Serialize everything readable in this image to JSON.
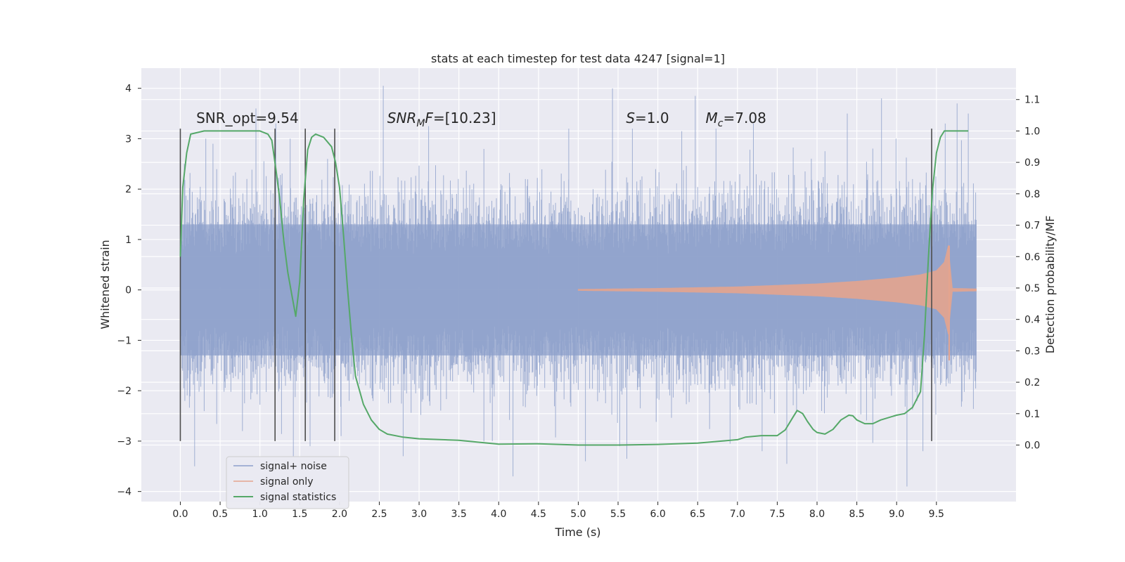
{
  "chart_data": {
    "type": "line",
    "title": "stats at each timestep for test data 4247 [signal=1]",
    "xlabel": "Time (s)",
    "ylabel": "Whitened strain",
    "y2label": "Detection probability/MF",
    "xlim": [
      -0.49,
      10.5
    ],
    "ylim": [
      -4.2,
      4.4
    ],
    "y2lim": [
      -0.18,
      1.2
    ],
    "x_ticks": [
      "0.0",
      "0.5",
      "1.0",
      "1.5",
      "2.0",
      "2.5",
      "3.0",
      "3.5",
      "4.0",
      "4.5",
      "5.0",
      "5.5",
      "6.0",
      "6.5",
      "7.0",
      "7.5",
      "8.0",
      "8.5",
      "9.0",
      "9.5"
    ],
    "y_ticks": [
      "−4",
      "−3",
      "−2",
      "−1",
      "0",
      "1",
      "2",
      "3",
      "4"
    ],
    "y2_ticks": [
      "0.0",
      "0.1",
      "0.2",
      "0.3",
      "0.4",
      "0.5",
      "0.6",
      "0.7",
      "0.8",
      "0.9",
      "1.0",
      "1.1"
    ],
    "grid": true,
    "legend_position": "lower-left",
    "annotations": [
      {
        "parts": [
          {
            "t": "SNR_opt=9.54",
            "style": "normal"
          }
        ],
        "x": 0.2,
        "y": 3.2
      },
      {
        "parts": [
          {
            "t": "SNR",
            "style": "italic"
          },
          {
            "t": "M",
            "style": "italic-sub"
          },
          {
            "t": "F",
            "style": "italic"
          },
          {
            "t": "=[10.23]",
            "style": "normal"
          }
        ],
        "x": 2.6,
        "y": 3.2
      },
      {
        "parts": [
          {
            "t": "S",
            "style": "italic"
          },
          {
            "t": "=1.0",
            "style": "normal"
          }
        ],
        "x": 5.6,
        "y": 3.2
      },
      {
        "parts": [
          {
            "t": "M",
            "style": "italic"
          },
          {
            "t": "c",
            "style": "italic-sub"
          },
          {
            "t": "=7.08",
            "style": "normal"
          }
        ],
        "x": 6.6,
        "y": 3.2
      }
    ],
    "vlines": [
      0.0,
      1.19,
      1.57,
      1.94,
      9.44
    ],
    "vline_range": [
      -3.0,
      3.2
    ],
    "series": [
      {
        "name": "signal+ noise",
        "color": "#8da0cb",
        "kind": "noise",
        "x_range": [
          0.0,
          10.0
        ],
        "bulk_amplitude": 1.3,
        "typical_peak": 2.5,
        "spikes": [
          [
            0.05,
            2.5
          ],
          [
            0.18,
            -3.5
          ],
          [
            0.32,
            3.0
          ],
          [
            0.41,
            2.9
          ],
          [
            0.78,
            -2.8
          ],
          [
            0.95,
            3.6
          ],
          [
            1.2,
            3.3
          ],
          [
            1.38,
            3.0
          ],
          [
            1.42,
            -3.3
          ],
          [
            1.63,
            -3.1
          ],
          [
            1.85,
            2.6
          ],
          [
            2.02,
            -2.9
          ],
          [
            2.55,
            4.05
          ],
          [
            2.8,
            -3.3
          ],
          [
            3.12,
            3.25
          ],
          [
            3.92,
            -3.0
          ],
          [
            4.18,
            -3.7
          ],
          [
            4.88,
            3.2
          ],
          [
            5.09,
            -3.4
          ],
          [
            5.43,
            4.0
          ],
          [
            5.52,
            -3.1
          ],
          [
            5.61,
            -3.35
          ],
          [
            5.68,
            3.2
          ],
          [
            6.3,
            3.15
          ],
          [
            6.47,
            3.85
          ],
          [
            6.73,
            3.2
          ],
          [
            7.2,
            3.3
          ],
          [
            7.31,
            -3.2
          ],
          [
            7.62,
            -3.45
          ],
          [
            8.38,
            3.5
          ],
          [
            8.81,
            3.8
          ],
          [
            9.13,
            -3.9
          ],
          [
            9.33,
            -3.2
          ],
          [
            9.61,
            3.3
          ],
          [
            9.76,
            3.7
          ],
          [
            9.9,
            3.5
          ]
        ]
      },
      {
        "name": "signal only",
        "color": "#e5a48e",
        "kind": "chirp",
        "x_range": [
          5.0,
          10.0
        ],
        "points": [
          [
            5.0,
            0.01
          ],
          [
            6.0,
            0.03
          ],
          [
            7.0,
            0.06
          ],
          [
            8.0,
            0.12
          ],
          [
            8.5,
            0.17
          ],
          [
            9.0,
            0.24
          ],
          [
            9.3,
            0.3
          ],
          [
            9.5,
            0.38
          ],
          [
            9.6,
            0.55
          ],
          [
            9.65,
            0.88
          ],
          [
            9.67,
            0.5
          ],
          [
            9.7,
            0.03
          ],
          [
            10.0,
            0.02
          ]
        ]
      },
      {
        "name": "signal statistics",
        "color": "#55a868",
        "axis": "right",
        "kind": "line",
        "x": [
          0.0,
          0.03,
          0.08,
          0.13,
          0.3,
          0.5,
          0.8,
          1.0,
          1.1,
          1.15,
          1.2,
          1.25,
          1.3,
          1.35,
          1.4,
          1.45,
          1.5,
          1.55,
          1.6,
          1.65,
          1.7,
          1.8,
          1.9,
          1.95,
          2.0,
          2.05,
          2.1,
          2.15,
          2.2,
          2.3,
          2.4,
          2.5,
          2.6,
          2.8,
          3.0,
          3.5,
          4.0,
          4.5,
          5.0,
          5.5,
          6.0,
          6.5,
          7.0,
          7.1,
          7.3,
          7.5,
          7.6,
          7.7,
          7.75,
          7.82,
          7.88,
          7.95,
          8.0,
          8.1,
          8.2,
          8.3,
          8.4,
          8.45,
          8.5,
          8.6,
          8.7,
          8.8,
          9.0,
          9.1,
          9.2,
          9.3,
          9.35,
          9.4,
          9.45,
          9.5,
          9.55,
          9.6,
          9.7,
          9.9
        ],
        "y": [
          0.6,
          0.82,
          0.93,
          0.99,
          1.0,
          1.0,
          1.0,
          1.0,
          0.99,
          0.97,
          0.88,
          0.78,
          0.65,
          0.55,
          0.48,
          0.41,
          0.52,
          0.78,
          0.94,
          0.98,
          0.99,
          0.98,
          0.95,
          0.9,
          0.82,
          0.67,
          0.5,
          0.35,
          0.22,
          0.13,
          0.08,
          0.05,
          0.035,
          0.025,
          0.02,
          0.015,
          0.003,
          0.004,
          0.0,
          0.0,
          0.002,
          0.006,
          0.017,
          0.025,
          0.03,
          0.03,
          0.048,
          0.09,
          0.11,
          0.1,
          0.075,
          0.05,
          0.04,
          0.035,
          0.05,
          0.08,
          0.095,
          0.093,
          0.08,
          0.068,
          0.068,
          0.08,
          0.095,
          0.1,
          0.12,
          0.17,
          0.35,
          0.6,
          0.81,
          0.93,
          0.98,
          1.0,
          1.0,
          1.0
        ]
      }
    ]
  }
}
